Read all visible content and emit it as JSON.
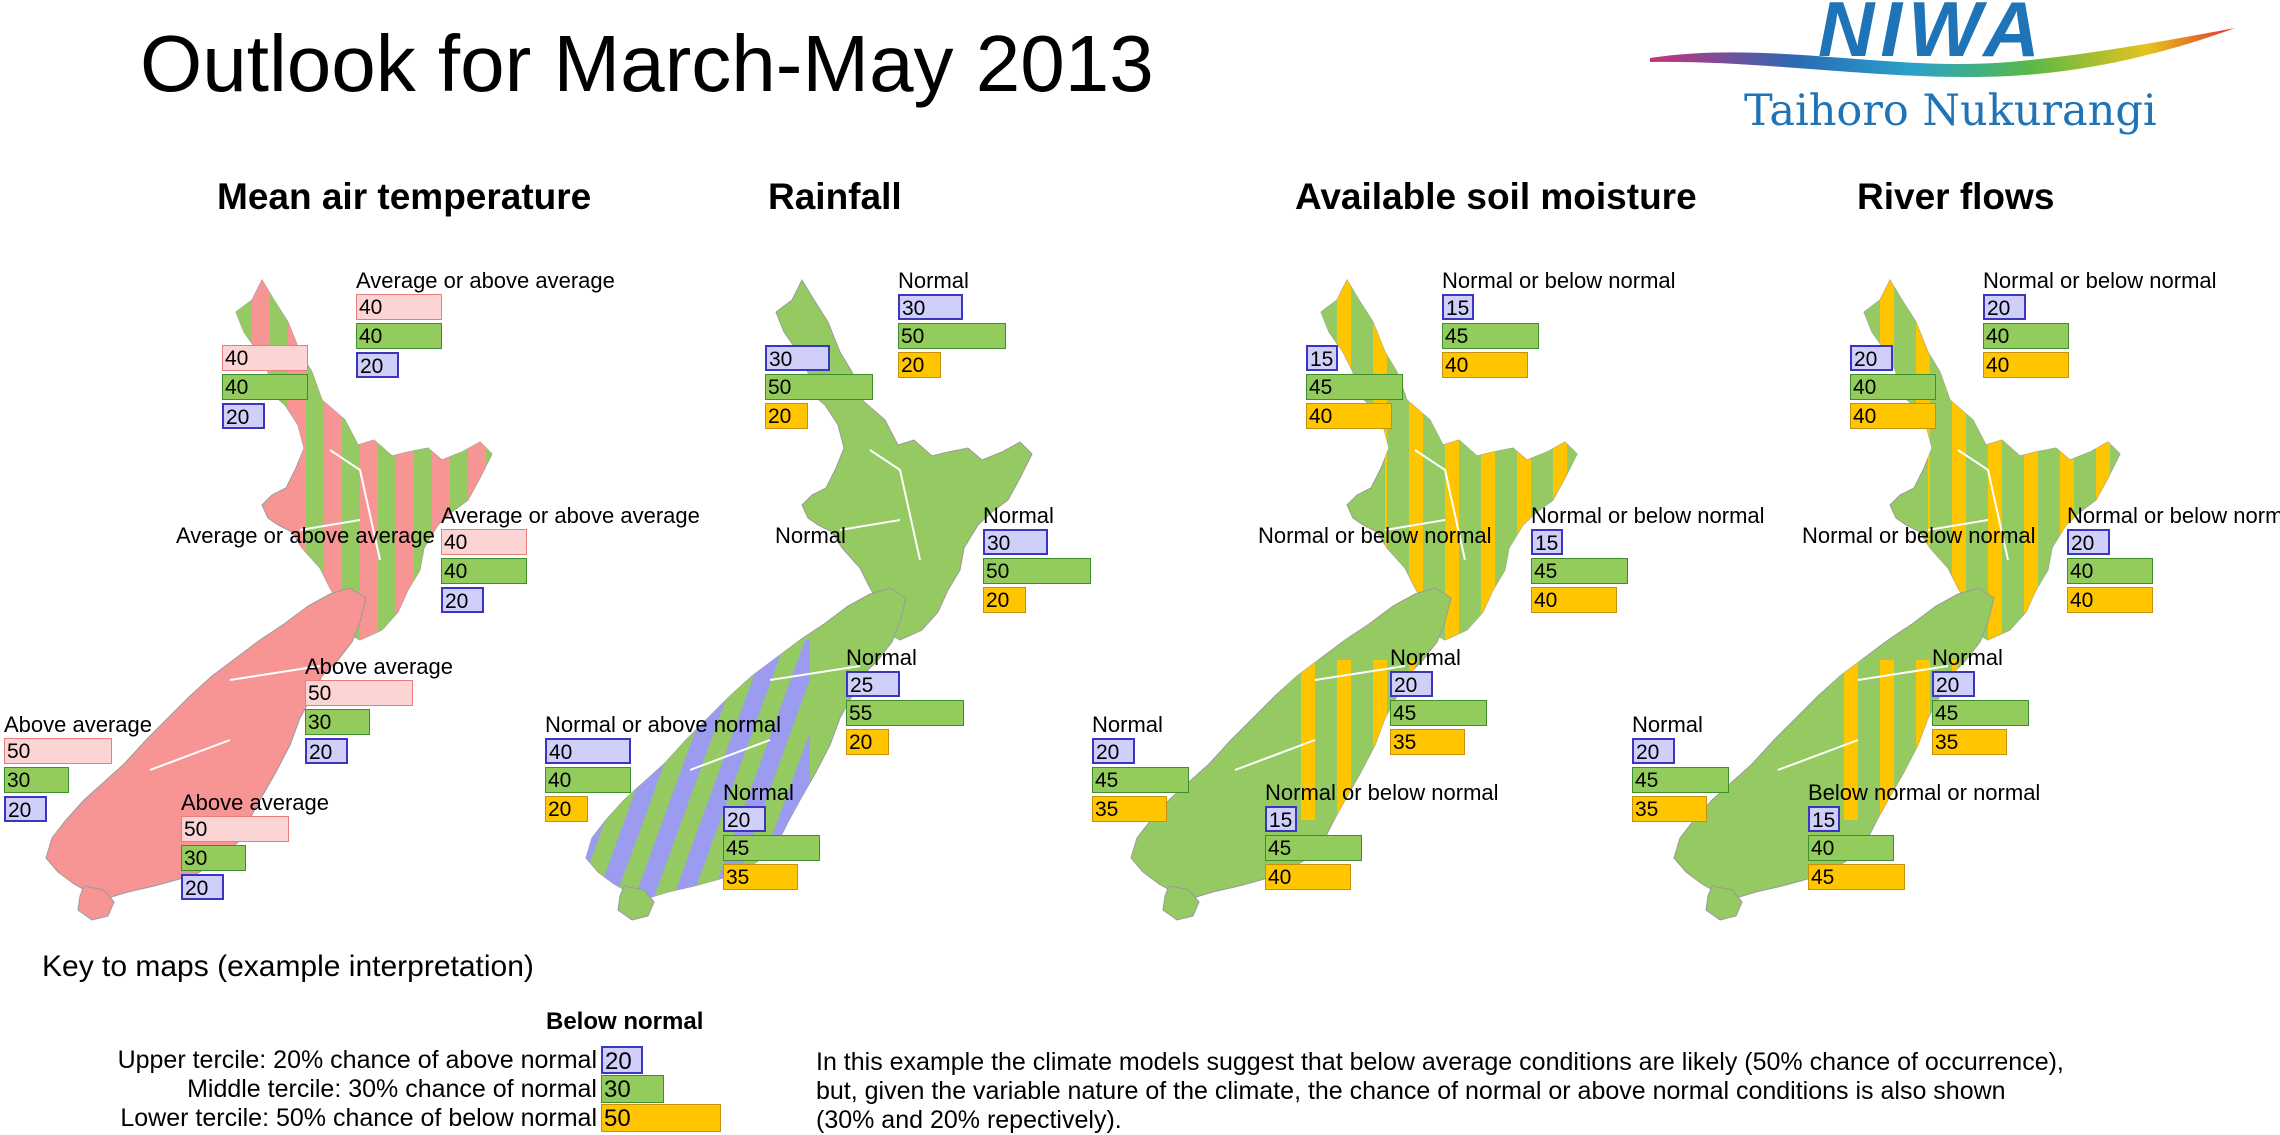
{
  "title": "Outlook for March-May 2013",
  "logo": {
    "word": "NIWA",
    "subtitle": "Taihoro Nukurangi",
    "colors": [
      "#c9327b",
      "#2a6ab5",
      "#2aa2c9",
      "#58b947",
      "#e7c21f",
      "#e0322f"
    ]
  },
  "colors": {
    "above": "#f79595",
    "normal": "#95ca62",
    "below": "#9b9bf0",
    "soil_below": "#ffc600"
  },
  "panels": [
    {
      "title": "Mean air temperature",
      "regions": [
        {
          "label": "Average or above average",
          "values": [
            40,
            40,
            20
          ]
        },
        {
          "label": "Average or above average",
          "values": [
            40,
            40,
            20
          ]
        },
        {
          "label": "Average or above average",
          "values": [
            40,
            40,
            20
          ]
        },
        {
          "label": "Above average",
          "values": [
            50,
            30,
            20
          ]
        },
        {
          "label": "Above average",
          "values": [
            50,
            30,
            20
          ]
        },
        {
          "label": "Above average",
          "values": [
            50,
            30,
            20
          ]
        }
      ]
    },
    {
      "title": "Rainfall",
      "regions": [
        {
          "label": "Normal",
          "values": [
            30,
            50,
            20
          ]
        },
        {
          "label": "Normal",
          "values": [
            30,
            50,
            20
          ]
        },
        {
          "label": "Normal",
          "values": [
            30,
            50,
            20
          ]
        },
        {
          "label": "Normal",
          "values": [
            25,
            55,
            20
          ]
        },
        {
          "label": "Normal or above normal",
          "values": [
            40,
            40,
            20
          ]
        },
        {
          "label": "Normal",
          "values": [
            20,
            45,
            35
          ]
        }
      ]
    },
    {
      "title": "Available soil moisture",
      "regions": [
        {
          "label": "Normal or below normal",
          "values": [
            15,
            45,
            40
          ]
        },
        {
          "label": "Normal or below normal",
          "values": [
            15,
            45,
            40
          ]
        },
        {
          "label": "Normal or below normal",
          "values": [
            15,
            45,
            40
          ]
        },
        {
          "label": "Normal",
          "values": [
            20,
            45,
            35
          ]
        },
        {
          "label": "Normal",
          "values": [
            20,
            45,
            35
          ]
        },
        {
          "label": "Normal or below normal",
          "values": [
            15,
            45,
            40
          ]
        }
      ]
    },
    {
      "title": "River flows",
      "regions": [
        {
          "label": "Normal or below normal",
          "values": [
            20,
            40,
            40
          ]
        },
        {
          "label": "Normal or below normal",
          "values": [
            20,
            40,
            40
          ]
        },
        {
          "label": "Normal or below normal",
          "values": [
            20,
            40,
            40
          ]
        },
        {
          "label": "Normal",
          "values": [
            20,
            45,
            35
          ]
        },
        {
          "label": "Normal",
          "values": [
            20,
            45,
            35
          ]
        },
        {
          "label": "Below normal or normal",
          "values": [
            15,
            40,
            45
          ]
        }
      ]
    }
  ],
  "key": {
    "title": "Key to maps (example interpretation)",
    "heading": "Below normal",
    "rows": [
      {
        "text": "Upper tercile: 20% chance of above normal",
        "value": 20
      },
      {
        "text": "Middle tercile: 30% chance of normal",
        "value": 30
      },
      {
        "text": "Lower tercile: 50% chance of below normal",
        "value": 50
      }
    ],
    "explanation": "In this example the climate models suggest that below average conditions are likely (50% chance of occurrence), but, given the variable nature of the climate, the chance of normal or above normal conditions is also shown (30% and 20% repectively)."
  }
}
